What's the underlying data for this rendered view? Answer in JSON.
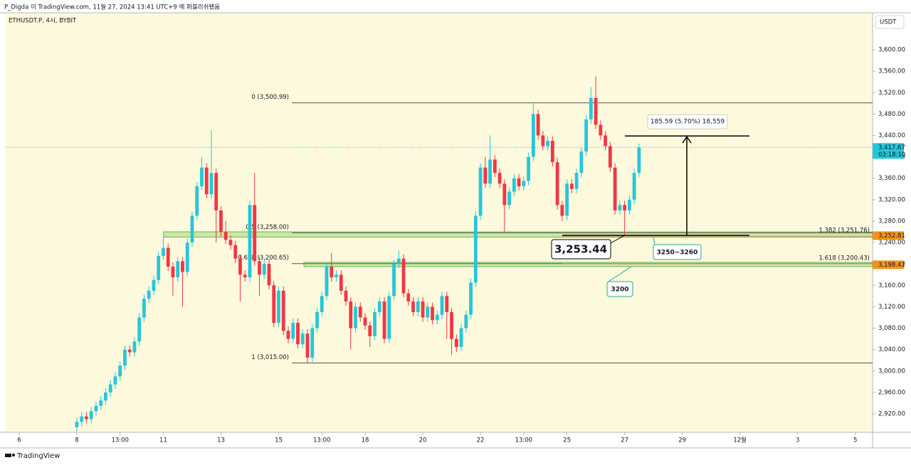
{
  "header": {
    "publisher": "P_Digda 이 TradingView.com, 11월 27, 2024 13:41 UTC+9 에 퍼블리쉬됐음",
    "footer": "TradingView"
  },
  "chart_data": {
    "type": "candlestick",
    "symbol": "ETHUSDT.P, 4시, BYBIT",
    "y_unit": "USDT",
    "up_color": "#26c6da",
    "down_color": "#f23645",
    "xlim": [
      -2.8,
      177.6
    ],
    "ylim": [
      2885.5,
      3669.1
    ],
    "xticks": [
      {
        "value": 0,
        "label": "6"
      },
      {
        "value": 12,
        "label": "8"
      },
      {
        "value": 21,
        "label": "13:00"
      },
      {
        "value": 30,
        "label": "11"
      },
      {
        "value": 42,
        "label": "13"
      },
      {
        "value": 54,
        "label": "15"
      },
      {
        "value": 63,
        "label": "13:00"
      },
      {
        "value": 72,
        "label": "18"
      },
      {
        "value": 84,
        "label": "20"
      },
      {
        "value": 96,
        "label": "22"
      },
      {
        "value": 105,
        "label": "13:00"
      },
      {
        "value": 114,
        "label": "25"
      },
      {
        "value": 126,
        "label": "27"
      },
      {
        "value": 138,
        "label": "29"
      },
      {
        "value": 150,
        "label": "12월"
      },
      {
        "value": 162,
        "label": "3"
      },
      {
        "value": 174,
        "label": "5"
      }
    ],
    "yticks": [
      {
        "value": 2920,
        "label": "2,920.00"
      },
      {
        "value": 2960,
        "label": "2,960.00"
      },
      {
        "value": 3000,
        "label": "3,000.00"
      },
      {
        "value": 3040,
        "label": "3,040.00"
      },
      {
        "value": 3080,
        "label": "3,080.00"
      },
      {
        "value": 3120,
        "label": "3,120.00"
      },
      {
        "value": 3160,
        "label": "3,160.00"
      },
      {
        "value": 3200,
        "label": "3,200.00"
      },
      {
        "value": 3240,
        "label": "3,240.00"
      },
      {
        "value": 3280,
        "label": "3,280.00"
      },
      {
        "value": 3320,
        "label": "3,320.00"
      },
      {
        "value": 3360,
        "label": "3,360.00"
      },
      {
        "value": 3400,
        "label": "3,400.00"
      },
      {
        "value": 3440,
        "label": "3,440.00"
      },
      {
        "value": 3480,
        "label": "3,480.00"
      },
      {
        "value": 3520,
        "label": "3,520.00"
      },
      {
        "value": 3560,
        "label": "3,560.00"
      },
      {
        "value": 3600,
        "label": "3,600.00"
      }
    ],
    "x": [
      12,
      13,
      14,
      15,
      16,
      17,
      18,
      19,
      20,
      21,
      22,
      23,
      24,
      25,
      26,
      27,
      28,
      29,
      30,
      31,
      32,
      33,
      34,
      35,
      36,
      37,
      38,
      39,
      40,
      41,
      42,
      43,
      44,
      45,
      46,
      47,
      48,
      49,
      50,
      51,
      52,
      53,
      54,
      55,
      56,
      57,
      58,
      59,
      60,
      61,
      62,
      63,
      64,
      65,
      66,
      67,
      68,
      69,
      70,
      71,
      72,
      73,
      74,
      75,
      76,
      77,
      78,
      79,
      80,
      81,
      82,
      83,
      84,
      85,
      86,
      87,
      88,
      89,
      90,
      91,
      92,
      93,
      94,
      95,
      96,
      97,
      98,
      99,
      100,
      101,
      102,
      103,
      104,
      105,
      106,
      107,
      108,
      109,
      110,
      111,
      112,
      113,
      114,
      115,
      116,
      117,
      118,
      119,
      120,
      121,
      122,
      123,
      124,
      125,
      126,
      127,
      128,
      129
    ],
    "open": [
      2895,
      2905,
      2915,
      2910,
      2925,
      2935,
      2945,
      2960,
      2975,
      2990,
      3010,
      3040,
      3035,
      3055,
      3100,
      3135,
      3150,
      3170,
      3215,
      3230,
      3195,
      3175,
      3205,
      3185,
      3240,
      3290,
      3345,
      3380,
      3330,
      3370,
      3300,
      3260,
      3245,
      3235,
      3210,
      3180,
      3175,
      3310,
      3205,
      3180,
      3200,
      3160,
      3090,
      3150,
      3075,
      3060,
      3090,
      3050,
      3070,
      3025,
      3080,
      3110,
      3140,
      3195,
      3175,
      3180,
      3150,
      3130,
      3080,
      3120,
      3100,
      3085,
      3065,
      3110,
      3130,
      3060,
      3140,
      3200,
      3210,
      3145,
      3130,
      3110,
      3130,
      3100,
      3120,
      3095,
      3105,
      3140,
      3110,
      3060,
      3045,
      3080,
      3105,
      3165,
      3290,
      3380,
      3350,
      3395,
      3370,
      3350,
      3310,
      3335,
      3360,
      3345,
      3355,
      3400,
      3480,
      3440,
      3420,
      3430,
      3390,
      3310,
      3290,
      3350,
      3340,
      3370,
      3410,
      3470,
      3510,
      3460,
      3440,
      3420,
      3380,
      3300,
      3310,
      3300,
      3320,
      3370
    ],
    "high": [
      2913,
      2923,
      2923,
      2933,
      2943,
      2953,
      2968,
      2983,
      2998,
      3018,
      3048,
      3048,
      3063,
      3108,
      3143,
      3158,
      3178,
      3223,
      3250,
      3238,
      3203,
      3213,
      3213,
      3248,
      3298,
      3353,
      3400,
      3388,
      3450,
      3378,
      3308,
      3280,
      3253,
      3243,
      3218,
      3188,
      3318,
      3370,
      3213,
      3208,
      3208,
      3168,
      3158,
      3158,
      3083,
      3098,
      3098,
      3078,
      3078,
      3088,
      3118,
      3148,
      3203,
      3220,
      3188,
      3188,
      3158,
      3138,
      3128,
      3128,
      3108,
      3093,
      3118,
      3138,
      3138,
      3148,
      3208,
      3225,
      3218,
      3153,
      3138,
      3138,
      3138,
      3128,
      3128,
      3113,
      3148,
      3148,
      3118,
      3068,
      3088,
      3113,
      3173,
      3298,
      3388,
      3400,
      3440,
      3403,
      3378,
      3358,
      3343,
      3368,
      3368,
      3363,
      3408,
      3500,
      3488,
      3448,
      3438,
      3438,
      3398,
      3318,
      3358,
      3358,
      3378,
      3418,
      3478,
      3530,
      3550,
      3468,
      3448,
      3428,
      3388,
      3318,
      3318,
      3328,
      3378,
      3425
    ],
    "low": [
      2887,
      2897,
      2902,
      2902,
      2917,
      2927,
      2937,
      2952,
      2967,
      2982,
      3002,
      3027,
      3027,
      3047,
      3092,
      3127,
      3142,
      3162,
      3207,
      3187,
      3140,
      3167,
      3120,
      3177,
      3232,
      3282,
      3337,
      3322,
      3322,
      3240,
      3252,
      3237,
      3227,
      3202,
      3130,
      3167,
      3167,
      3197,
      3140,
      3172,
      3152,
      3082,
      3082,
      3067,
      3052,
      3052,
      3042,
      3042,
      3015,
      3017,
      3072,
      3102,
      3132,
      3167,
      3167,
      3142,
      3122,
      3040,
      3072,
      3092,
      3077,
      3045,
      3057,
      3102,
      3052,
      3052,
      3132,
      3192,
      3137,
      3122,
      3102,
      3102,
      3092,
      3092,
      3087,
      3087,
      3097,
      3060,
      3030,
      3035,
      3037,
      3072,
      3097,
      3157,
      3282,
      3342,
      3342,
      3362,
      3342,
      3260,
      3302,
      3327,
      3337,
      3337,
      3347,
      3392,
      3432,
      3412,
      3412,
      3382,
      3302,
      3280,
      3282,
      3332,
      3332,
      3362,
      3402,
      3462,
      3452,
      3432,
      3412,
      3372,
      3292,
      3292,
      3253.44,
      3292,
      3312,
      3362
    ],
    "close": [
      2905,
      2915,
      2910,
      2925,
      2935,
      2945,
      2960,
      2975,
      2990,
      3010,
      3040,
      3035,
      3055,
      3100,
      3135,
      3150,
      3170,
      3215,
      3230,
      3195,
      3175,
      3205,
      3185,
      3240,
      3290,
      3345,
      3380,
      3330,
      3370,
      3300,
      3260,
      3245,
      3235,
      3210,
      3180,
      3175,
      3310,
      3205,
      3180,
      3200,
      3160,
      3090,
      3150,
      3075,
      3060,
      3090,
      3050,
      3070,
      3025,
      3080,
      3110,
      3140,
      3195,
      3175,
      3180,
      3150,
      3130,
      3080,
      3120,
      3100,
      3085,
      3065,
      3110,
      3130,
      3060,
      3140,
      3200,
      3210,
      3145,
      3130,
      3110,
      3130,
      3100,
      3120,
      3095,
      3105,
      3140,
      3110,
      3060,
      3045,
      3080,
      3105,
      3165,
      3290,
      3380,
      3350,
      3395,
      3370,
      3350,
      3310,
      3335,
      3360,
      3345,
      3355,
      3400,
      3480,
      3440,
      3420,
      3430,
      3390,
      3310,
      3290,
      3350,
      3340,
      3370,
      3410,
      3470,
      3510,
      3460,
      3440,
      3420,
      3380,
      3300,
      3310,
      3300,
      3320,
      3370,
      3417.67
    ],
    "fib_levels": [
      {
        "value": 3500.99,
        "label": "0 (3,500.99)"
      },
      {
        "value": 3258.0,
        "label": "0.5 (3,258.00)"
      },
      {
        "value": 3200.65,
        "label": "0.618 (3,200.65)"
      },
      {
        "value": 3015.0,
        "label": "1 (3,015.00)"
      }
    ],
    "fib_extensions": [
      {
        "value": 3251.76,
        "label": "1.382 (3,251.76)"
      },
      {
        "value": 3200.43,
        "label": "1.618 (3,200.43)"
      }
    ],
    "zones": [
      {
        "low": 3250,
        "high": 3260,
        "label": "3250~3260"
      },
      {
        "low": 3195,
        "high": 3203,
        "label": "3200"
      }
    ],
    "low_callout": {
      "value": 3253.44,
      "label": "3,253.44"
    },
    "measure": {
      "from": 3253.44,
      "to": 3439.03,
      "label": "185.59 (5.70%) 18,559"
    },
    "price_tags": [
      {
        "value": 3417.67,
        "label": "3,417.67",
        "sub": "03:18:10",
        "color": "#26c6da"
      },
      {
        "value": 3252.81,
        "label": "3,252.81",
        "color": "#f7931a"
      },
      {
        "value": 3198.41,
        "label": "3,198.41",
        "color": "#f7931a"
      }
    ]
  }
}
